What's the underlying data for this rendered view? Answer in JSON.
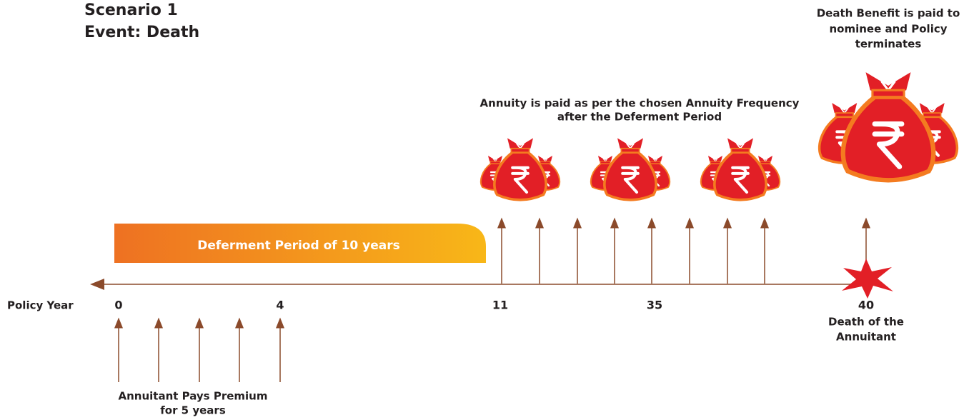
{
  "header": {
    "title": [
      "Scenario 1",
      "Event: Death"
    ]
  },
  "death_benefit": [
    "Death Benefit is paid to",
    "nominee and Policy",
    "terminates"
  ],
  "annuity_note": [
    "Annuity is paid as per the chosen Annuity Frequency",
    "after the Deferment Period"
  ],
  "deferment": "Deferment Period of 10 years",
  "axis_label": "Policy Year",
  "years": [
    "0",
    "4",
    "11",
    "35",
    "40"
  ],
  "death_event": [
    "Death of the",
    "Annuitant"
  ],
  "premium_note": [
    "Annuitant Pays Premium",
    "for 5 years"
  ]
}
